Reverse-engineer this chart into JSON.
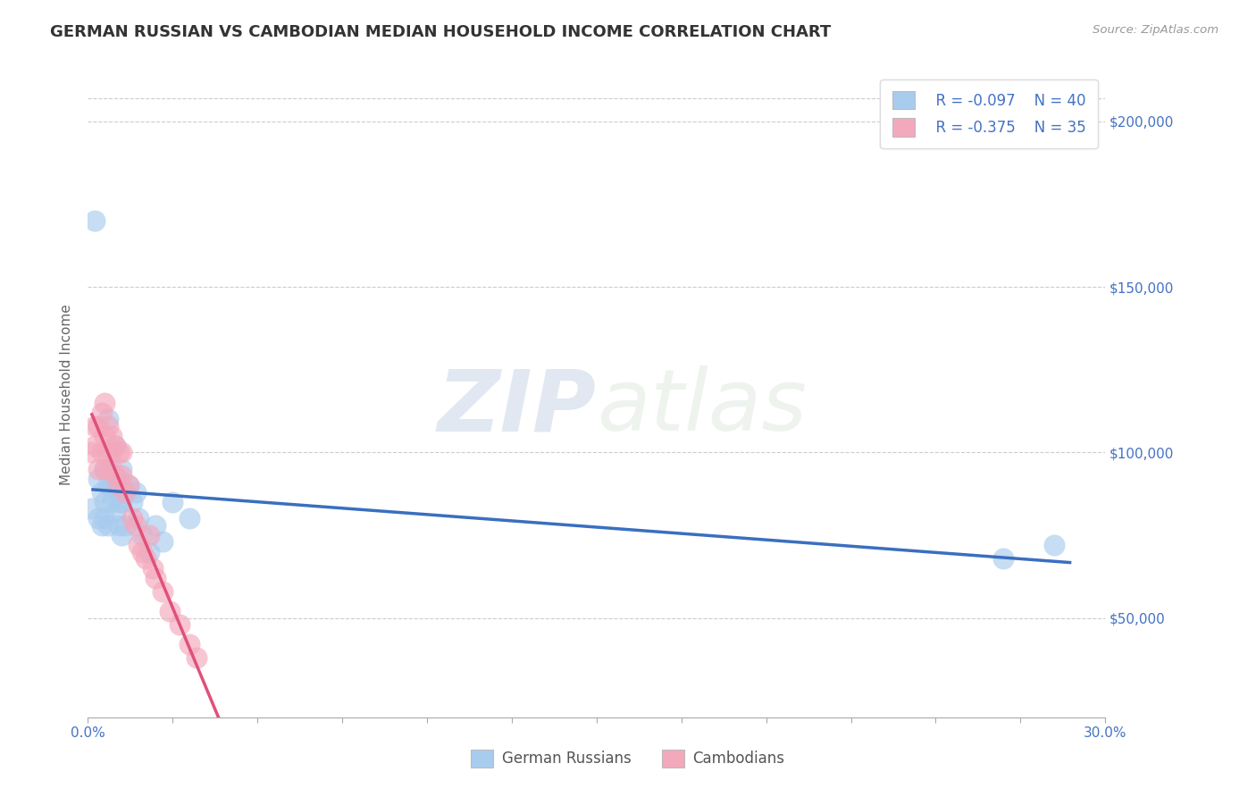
{
  "title": "GERMAN RUSSIAN VS CAMBODIAN MEDIAN HOUSEHOLD INCOME CORRELATION CHART",
  "source": "Source: ZipAtlas.com",
  "ylabel": "Median Household Income",
  "y_ticks": [
    50000,
    100000,
    150000,
    200000
  ],
  "y_tick_labels": [
    "$50,000",
    "$100,000",
    "$150,000",
    "$200,000"
  ],
  "xlim": [
    0.0,
    0.3
  ],
  "ylim": [
    20000,
    215000
  ],
  "legend_r1": "R = -0.097",
  "legend_n1": "N = 40",
  "legend_r2": "R = -0.375",
  "legend_n2": "N = 35",
  "legend_label1": "German Russians",
  "legend_label2": "Cambodians",
  "blue_color": "#A8CCEE",
  "pink_color": "#F4A8BC",
  "blue_line_color": "#3A6FBF",
  "pink_line_color": "#E0507A",
  "pink_line_color_dash": "#F0A0B8",
  "watermark_zip": "ZIP",
  "watermark_atlas": "atlas",
  "background_color": "#FFFFFF",
  "german_russian_x": [
    0.001,
    0.002,
    0.003,
    0.003,
    0.004,
    0.004,
    0.005,
    0.005,
    0.005,
    0.006,
    0.006,
    0.006,
    0.006,
    0.007,
    0.007,
    0.007,
    0.008,
    0.008,
    0.008,
    0.009,
    0.009,
    0.009,
    0.01,
    0.01,
    0.01,
    0.01,
    0.011,
    0.011,
    0.012,
    0.013,
    0.014,
    0.015,
    0.016,
    0.018,
    0.02,
    0.022,
    0.025,
    0.03,
    0.27,
    0.285
  ],
  "german_russian_y": [
    83000,
    170000,
    92000,
    80000,
    88000,
    78000,
    95000,
    85000,
    80000,
    110000,
    95000,
    90000,
    78000,
    100000,
    92000,
    85000,
    102000,
    90000,
    82000,
    92000,
    85000,
    78000,
    95000,
    90000,
    85000,
    75000,
    88000,
    78000,
    90000,
    85000,
    88000,
    80000,
    75000,
    70000,
    78000,
    73000,
    85000,
    80000,
    68000,
    72000
  ],
  "cambodian_x": [
    0.001,
    0.002,
    0.002,
    0.003,
    0.003,
    0.004,
    0.004,
    0.005,
    0.005,
    0.005,
    0.006,
    0.006,
    0.007,
    0.007,
    0.008,
    0.008,
    0.009,
    0.009,
    0.01,
    0.01,
    0.011,
    0.012,
    0.013,
    0.014,
    0.015,
    0.016,
    0.017,
    0.018,
    0.019,
    0.02,
    0.022,
    0.024,
    0.027,
    0.03,
    0.032
  ],
  "cambodian_y": [
    100000,
    108000,
    102000,
    108000,
    95000,
    112000,
    100000,
    115000,
    105000,
    95000,
    108000,
    100000,
    105000,
    95000,
    102000,
    93000,
    100000,
    90000,
    100000,
    93000,
    88000,
    90000,
    80000,
    78000,
    72000,
    70000,
    68000,
    75000,
    65000,
    62000,
    58000,
    52000,
    48000,
    42000,
    38000
  ]
}
